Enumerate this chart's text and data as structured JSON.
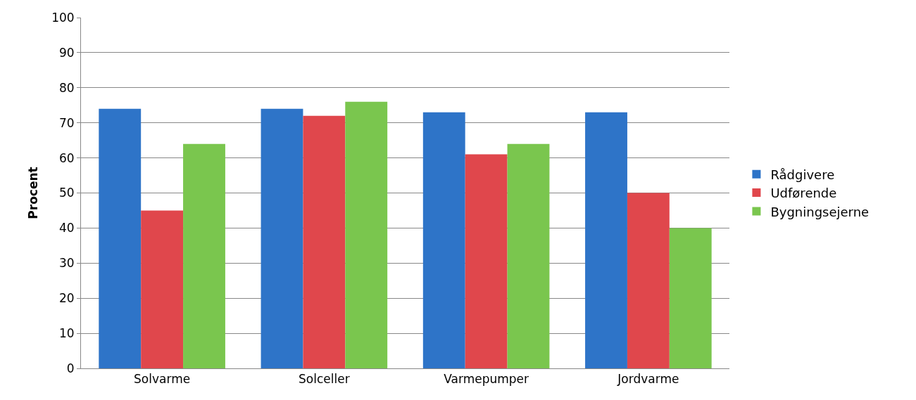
{
  "chart_data": {
    "type": "bar",
    "ylabel": "Procent",
    "categories": [
      "Solvarme",
      "Solceller",
      "Varmepumper",
      "Jordvarme"
    ],
    "series": [
      {
        "name": "Rådgivere",
        "color": "#2e74c8",
        "values": [
          74,
          74,
          73,
          73
        ]
      },
      {
        "name": "Udførende",
        "color": "#e0474c",
        "values": [
          45,
          72,
          61,
          50
        ]
      },
      {
        "name": "Bygningsejerne",
        "color": "#7ac64e",
        "values": [
          64,
          76,
          64,
          40
        ]
      }
    ],
    "ylim": [
      0,
      100
    ],
    "yticks": [
      0,
      10,
      20,
      30,
      40,
      50,
      60,
      70,
      80,
      90,
      100
    ],
    "grid": "y",
    "legend": "right"
  }
}
